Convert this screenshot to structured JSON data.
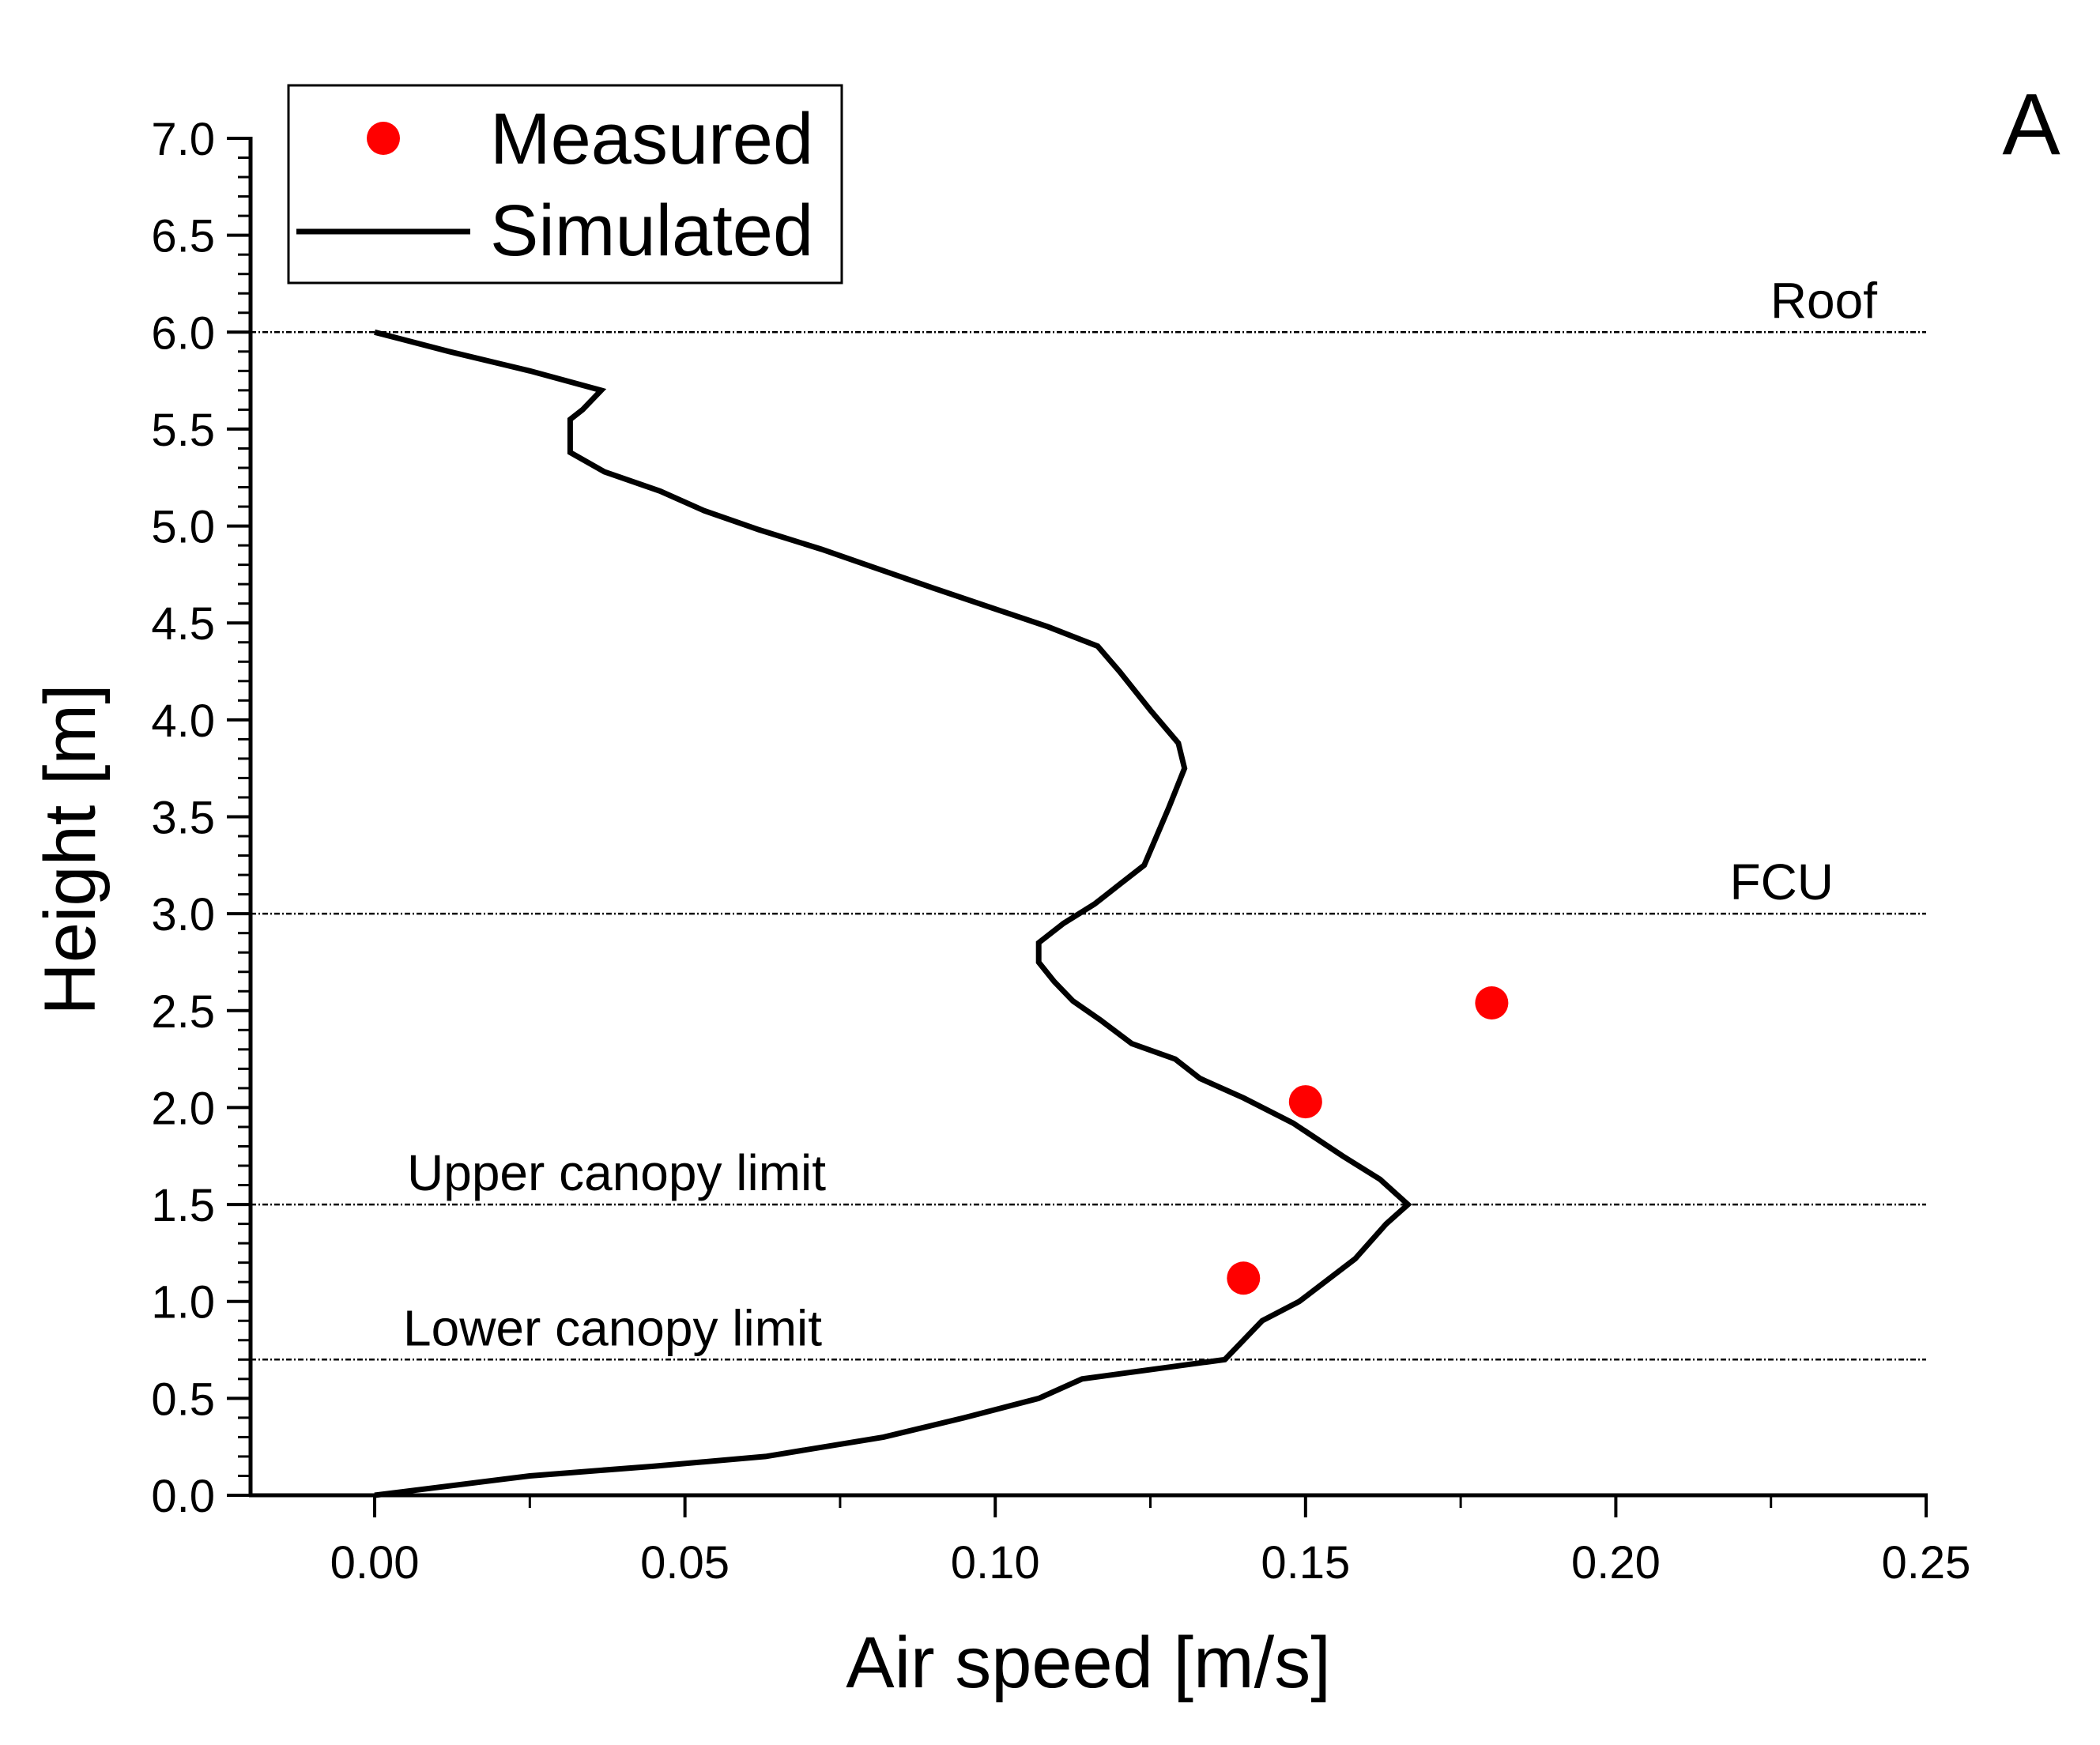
{
  "chart_data": {
    "type": "line",
    "panel_label": "A",
    "xlabel": "Air speed [m/s]",
    "ylabel": "Height [m]",
    "xlim": [
      -0.02,
      0.25
    ],
    "ylim": [
      0.0,
      7.0
    ],
    "x_ticks": [
      0.0,
      0.05,
      0.1,
      0.15,
      0.2,
      0.25
    ],
    "x_tick_labels": [
      "0.00",
      "0.05",
      "0.10",
      "0.15",
      "0.20",
      "0.25"
    ],
    "y_ticks": [
      0.0,
      0.5,
      1.0,
      1.5,
      2.0,
      2.5,
      3.0,
      3.5,
      4.0,
      4.5,
      5.0,
      5.5,
      6.0,
      6.5,
      7.0
    ],
    "y_tick_labels": [
      "0.0",
      "0.5",
      "1.0",
      "1.5",
      "2.0",
      "2.5",
      "3.0",
      "3.5",
      "4.0",
      "4.5",
      "5.0",
      "5.5",
      "6.0",
      "6.5",
      "7.0"
    ],
    "legend": {
      "position": "top-left",
      "entries": [
        {
          "label": "Measured",
          "marker": "circle",
          "color": "#ff0000"
        },
        {
          "label": "Simulated",
          "marker": "line",
          "color": "#000000"
        }
      ]
    },
    "reference_lines": [
      {
        "label": "Roof",
        "y": 6.0
      },
      {
        "label": "FCU",
        "y": 3.0
      },
      {
        "label": "Upper canopy limit",
        "y": 1.5
      },
      {
        "label": "Lower canopy limit",
        "y": 0.7
      }
    ],
    "series": [
      {
        "name": "Simulated",
        "type": "line",
        "color": "#000000",
        "points": [
          [
            0.0,
            0.0
          ],
          [
            0.025,
            0.1
          ],
          [
            0.045,
            0.15
          ],
          [
            0.063,
            0.2
          ],
          [
            0.082,
            0.3
          ],
          [
            0.095,
            0.4
          ],
          [
            0.107,
            0.5
          ],
          [
            0.114,
            0.6
          ],
          [
            0.137,
            0.7
          ],
          [
            0.143,
            0.9
          ],
          [
            0.149,
            1.0
          ],
          [
            0.158,
            1.22
          ],
          [
            0.163,
            1.4
          ],
          [
            0.1665,
            1.5
          ],
          [
            0.162,
            1.63
          ],
          [
            0.156,
            1.75
          ],
          [
            0.148,
            1.92
          ],
          [
            0.14,
            2.05
          ],
          [
            0.133,
            2.15
          ],
          [
            0.129,
            2.25
          ],
          [
            0.122,
            2.33
          ],
          [
            0.117,
            2.45
          ],
          [
            0.1125,
            2.55
          ],
          [
            0.1095,
            2.65
          ],
          [
            0.107,
            2.75
          ],
          [
            0.107,
            2.85
          ],
          [
            0.111,
            2.95
          ],
          [
            0.116,
            3.05
          ],
          [
            0.12,
            3.15
          ],
          [
            0.124,
            3.25
          ],
          [
            0.126,
            3.4
          ],
          [
            0.128,
            3.55
          ],
          [
            0.1305,
            3.75
          ],
          [
            0.1295,
            3.88
          ],
          [
            0.125,
            4.05
          ],
          [
            0.12,
            4.25
          ],
          [
            0.1165,
            4.38
          ],
          [
            0.1085,
            4.48
          ],
          [
            0.09,
            4.68
          ],
          [
            0.072,
            4.88
          ],
          [
            0.062,
            4.98
          ],
          [
            0.053,
            5.08
          ],
          [
            0.046,
            5.18
          ],
          [
            0.037,
            5.28
          ],
          [
            0.0315,
            5.38
          ],
          [
            0.0315,
            5.55
          ],
          [
            0.0335,
            5.6
          ],
          [
            0.0365,
            5.7
          ],
          [
            0.025,
            5.8
          ],
          [
            0.012,
            5.9
          ],
          [
            0.0,
            6.0
          ]
        ]
      },
      {
        "name": "Measured",
        "type": "scatter",
        "color": "#ff0000",
        "points": [
          [
            0.14,
            1.12
          ],
          [
            0.15,
            2.03
          ],
          [
            0.18,
            2.54
          ]
        ]
      }
    ]
  }
}
